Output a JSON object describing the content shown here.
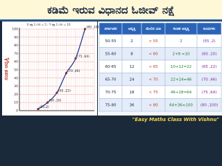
{
  "header": {
    "title": "ಕಡಿಮೆ ಇರುವ ವಿಧಾನದ ಓಜೀವ್ ನಕ್ಷೆ"
  },
  "graph": {
    "scale_note": "X ಅಕ್ಷ 1 cm = 5 ; Y ಅಕ್ಷ 1 cm = 10",
    "y_label": "ಸಂಚಿತ ಆವೃತ್ತಿ",
    "xlim": [
      45,
      85
    ],
    "ylim": [
      0,
      100
    ],
    "yticks": [
      0,
      10,
      20,
      30,
      40,
      50,
      60,
      70,
      80,
      90,
      100
    ],
    "points": [
      {
        "x": 55,
        "y": 2,
        "label": "(55,2)"
      },
      {
        "x": 60,
        "y": 10,
        "label": "(60 ,10)"
      },
      {
        "x": 65,
        "y": 22,
        "label": "(65 ,22)"
      },
      {
        "x": 70,
        "y": 46,
        "label": "(70 ,46)"
      },
      {
        "x": 75,
        "y": 64,
        "label": "(75 ,64)"
      },
      {
        "x": 80,
        "y": 100,
        "label": "(80 ,100)"
      }
    ]
  },
  "table": {
    "headers": [
      "ವರ್ಗಾಂತರ",
      "ಆವೃತ್ತಿ",
      "ಮೇಲಿನ ಮಿತಿ",
      "ಸಂಚಿತ ಆವೃತ್ತಿ",
      "ಬಿಂದುಗಳು"
    ],
    "rows": [
      [
        "50-55",
        "2",
        "< 55",
        "2",
        "(55 ,2)"
      ],
      [
        "55-60",
        "8",
        "< 60",
        "2+8 =10",
        "(60 ,10)"
      ],
      [
        "60-65",
        "12",
        "< 65",
        "10+12=22",
        "(65 ,22)"
      ],
      [
        "65-70",
        "24",
        "< 70",
        "22+24=46",
        "(70 ,46)"
      ],
      [
        "70-75",
        "18",
        "< 75",
        "46+18=64",
        "(75 ,64)"
      ],
      [
        "75-80",
        "36",
        "< 80",
        "64+36=100",
        "(80 ,100)"
      ]
    ]
  },
  "footer": {
    "channel": "\"Easy Maths  Class With Vishnu\""
  }
}
